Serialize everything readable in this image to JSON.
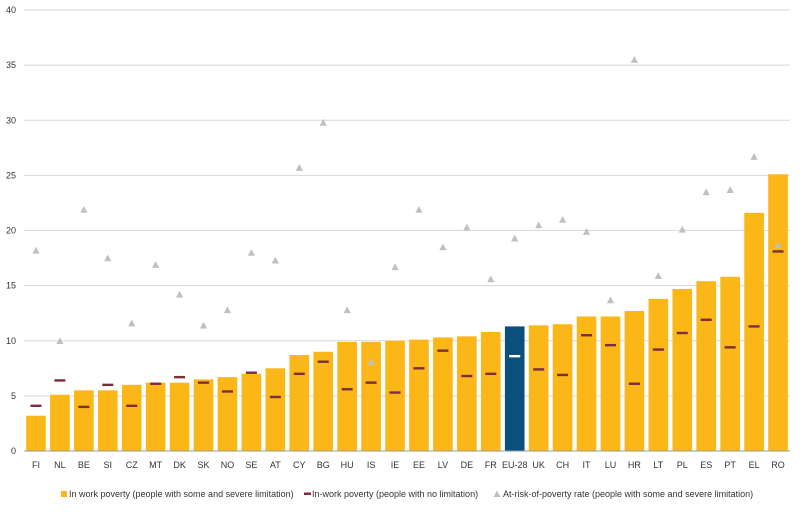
{
  "chart_data": {
    "type": "bar",
    "categories": [
      "FI",
      "NL",
      "BE",
      "SI",
      "CZ",
      "MT",
      "DK",
      "SK",
      "NO",
      "SE",
      "AT",
      "CY",
      "BG",
      "HU",
      "IS",
      "IE",
      "EE",
      "LV",
      "DE",
      "FR",
      "EU-28",
      "UK",
      "CH",
      "IT",
      "LU",
      "HR",
      "LT",
      "PL",
      "ES",
      "PT",
      "EL",
      "RO"
    ],
    "highlight_category": "EU-28",
    "ylim": [
      0,
      40
    ],
    "yticks": [
      0,
      5,
      10,
      15,
      20,
      25,
      30,
      35,
      40
    ],
    "grid": true,
    "legend_position": "bottom",
    "colors": {
      "bar": "#FBB617",
      "bar_highlight": "#0B4F7C",
      "dash": "#7A2E3E",
      "dash_highlight": "#ffffff",
      "triangle": "#C0C0C0",
      "grid": "#D9D9D9",
      "axis": "#999999"
    },
    "series": [
      {
        "name": "In work poverty (people with some and severe limitation)",
        "kind": "bar",
        "values": [
          3.2,
          5.1,
          5.5,
          5.5,
          6.0,
          6.2,
          6.2,
          6.5,
          6.7,
          7.0,
          7.5,
          8.7,
          9.0,
          9.9,
          9.9,
          10.0,
          10.1,
          10.3,
          10.4,
          10.8,
          11.3,
          11.4,
          11.5,
          12.2,
          12.2,
          12.7,
          13.8,
          14.7,
          15.4,
          15.8,
          21.6,
          25.1
        ]
      },
      {
        "name": "In-work poverty (people with no limitation)",
        "kind": "dash",
        "values": [
          4.1,
          6.4,
          4.0,
          6.0,
          4.1,
          6.1,
          6.7,
          6.2,
          5.4,
          7.1,
          4.9,
          7.0,
          8.1,
          5.6,
          6.2,
          5.3,
          7.5,
          9.1,
          6.8,
          7.0,
          8.6,
          7.4,
          6.9,
          10.5,
          9.6,
          6.1,
          9.2,
          10.7,
          11.9,
          9.4,
          11.3,
          18.1
        ]
      },
      {
        "name": "At-risk-of-poverty rate (people with some and severe limitation)",
        "kind": "triangle",
        "values": [
          18.2,
          10.0,
          21.9,
          17.5,
          11.6,
          16.9,
          14.2,
          11.4,
          12.8,
          18.0,
          17.3,
          25.7,
          29.8,
          12.8,
          8.1,
          16.7,
          21.9,
          18.5,
          20.3,
          15.6,
          19.3,
          20.5,
          21.0,
          19.9,
          13.7,
          35.5,
          15.9,
          20.1,
          23.5,
          23.7,
          26.7,
          18.7
        ]
      }
    ]
  }
}
